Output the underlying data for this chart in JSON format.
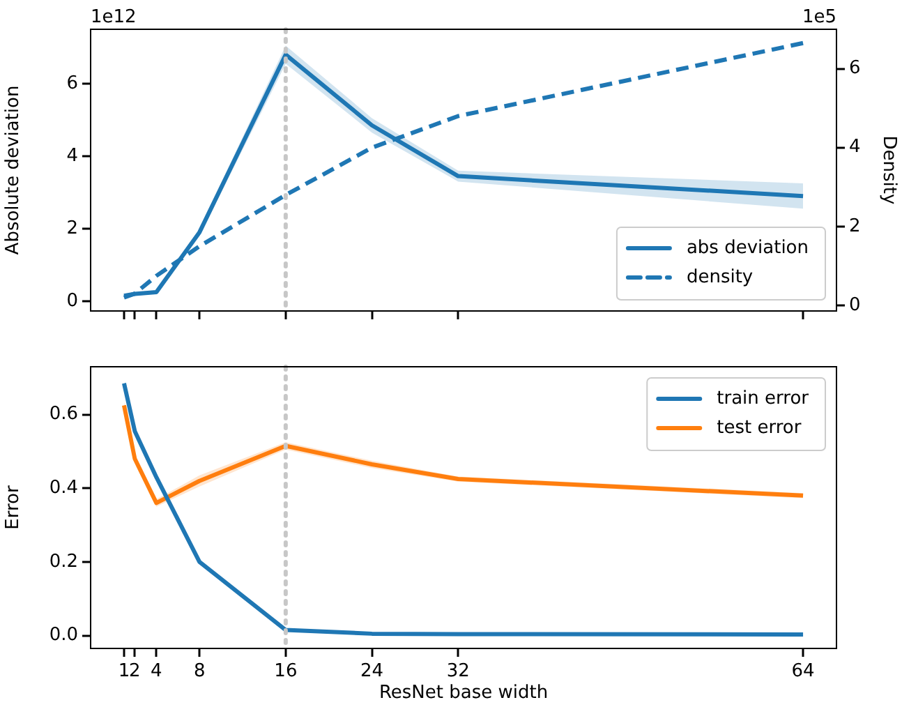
{
  "chart_data": [
    {
      "type": "line",
      "ylabel": "Absolute deviation",
      "y2label": "Density",
      "annotations": [
        "1e12",
        "1e5"
      ],
      "x": [
        1,
        2,
        4,
        8,
        16,
        24,
        32,
        64
      ],
      "series": [
        {
          "name": "abs deviation",
          "color": "#1f77b4",
          "line_style": "solid",
          "values": [
            0.15,
            0.2,
            0.25,
            1.9,
            6.8,
            4.85,
            3.45,
            2.9
          ],
          "lower": [
            0.1,
            0.15,
            0.2,
            1.8,
            6.55,
            4.65,
            3.3,
            2.55
          ],
          "upper": [
            0.2,
            0.25,
            0.3,
            2.0,
            7.05,
            5.05,
            3.6,
            3.25
          ]
        },
        {
          "name": "density",
          "color": "#1f77b4",
          "line_style": "dashed",
          "axis": "y2",
          "values": [
            0.2,
            0.3,
            0.75,
            1.5,
            2.8,
            4.0,
            4.8,
            6.65
          ]
        }
      ],
      "xlim": [
        -2.1,
        67.1
      ],
      "xticks": [
        1,
        2,
        4,
        8,
        16,
        24,
        32,
        64
      ],
      "ylim": [
        -0.27,
        7.5
      ],
      "yticks": [
        0,
        2,
        4,
        6
      ],
      "y2lim": [
        -0.14,
        7.0
      ],
      "y2ticks": [
        0,
        2,
        4,
        6
      ],
      "ref_lines": [
        {
          "axis": "x",
          "value": 16,
          "color": "#c7c7c7",
          "line_style": "dotted"
        }
      ],
      "tick_labels": "y",
      "grid": false,
      "legend": "bottom right",
      "marker": "none"
    },
    {
      "type": "line",
      "xlabel": "ResNet base width",
      "ylabel": "Error",
      "x": [
        1,
        2,
        4,
        8,
        16,
        24,
        32,
        64
      ],
      "series": [
        {
          "name": "train error",
          "color": "#1f77b4",
          "values": [
            0.685,
            0.555,
            0.43,
            0.2,
            0.015,
            0.005,
            0.004,
            0.003
          ]
        },
        {
          "name": "test error",
          "color": "#ff7f0e",
          "values": [
            0.625,
            0.48,
            0.36,
            0.42,
            0.515,
            0.465,
            0.425,
            0.38
          ],
          "lower": [
            0.615,
            0.47,
            0.35,
            0.405,
            0.505,
            0.455,
            0.418,
            0.373
          ],
          "upper": [
            0.635,
            0.49,
            0.37,
            0.435,
            0.525,
            0.475,
            0.432,
            0.387
          ]
        }
      ],
      "xlim": [
        -2.1,
        67.1
      ],
      "xticks": [
        1,
        2,
        4,
        8,
        16,
        24,
        32,
        64
      ],
      "ylim": [
        -0.035,
        0.73
      ],
      "yticks": [
        {
          "value": 0,
          "label": "0.0"
        },
        0.2,
        0.4,
        0.6
      ],
      "ref_lines": [
        {
          "axis": "x",
          "value": 16,
          "color": "#c7c7c7",
          "line_style": "dotted"
        }
      ],
      "grid": false,
      "legend": "top right",
      "marker": "none"
    }
  ]
}
